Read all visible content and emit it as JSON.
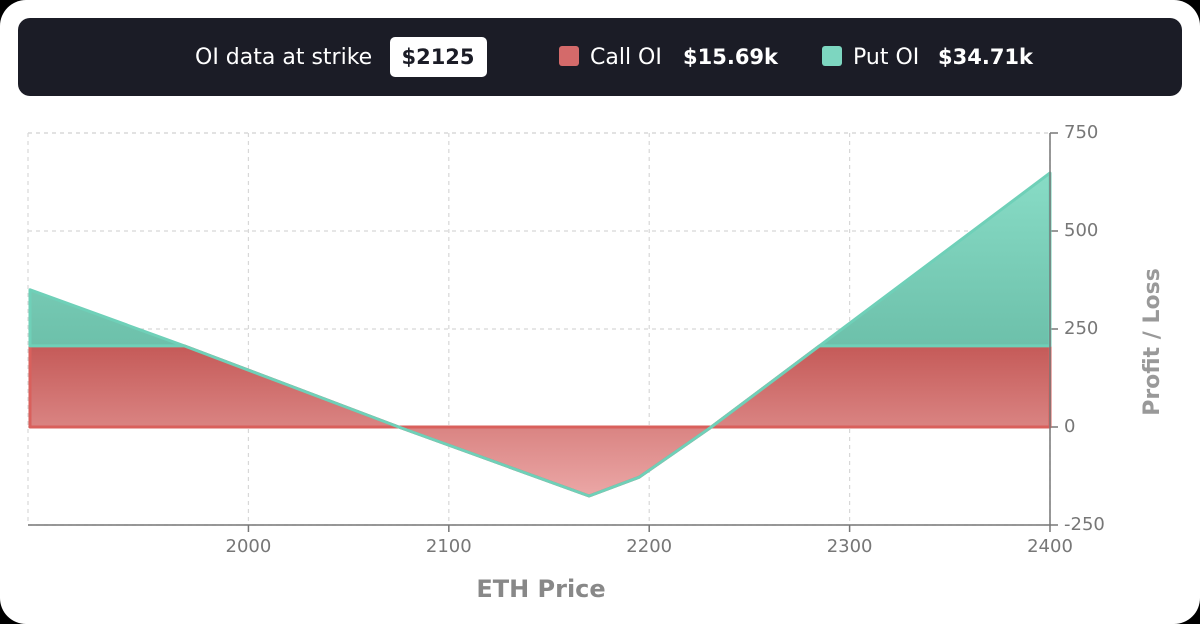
{
  "header": {
    "strike_label": "OI data at strike",
    "strike": "$2125",
    "legend": [
      {
        "label": "Call OI",
        "value": "$15.69k",
        "color": "#d46a6a"
      },
      {
        "label": "Put OI",
        "value": "$34.71k",
        "color": "#7dd6c0"
      }
    ]
  },
  "chart_data": {
    "type": "area",
    "stacked": true,
    "x_label": "ETH Price",
    "y_label": "Profit / Loss",
    "x": [
      1891,
      1968,
      2075,
      2170,
      2195,
      2231,
      2285,
      2400
    ],
    "series": [
      {
        "color": "#d9605c",
        "values": [
          207,
          207,
          0,
          -176,
          -128,
          0,
          207,
          207
        ]
      },
      {
        "color": "#6fd0b8",
        "values": [
          143,
          0,
          0,
          0,
          0,
          0,
          0,
          441
        ]
      }
    ],
    "xlim": [
      1890,
      2400
    ],
    "xticks": [
      2000,
      2100,
      2200,
      2300,
      2400
    ],
    "ylim": [
      -250,
      750
    ],
    "yticks": [
      -250,
      0,
      250,
      500,
      750
    ],
    "grid": true
  }
}
